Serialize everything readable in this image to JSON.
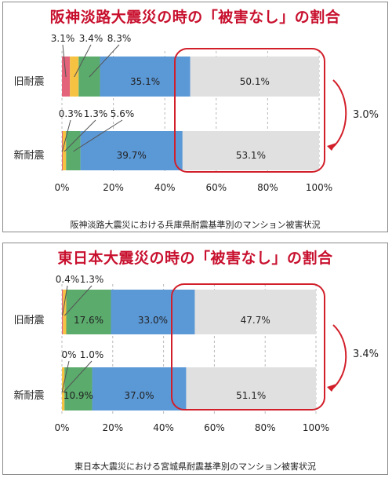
{
  "chart_data": [
    {
      "type": "bar",
      "title": "阪神淡路大震災の時の「被害なし」の割合",
      "caption": "阪神淡路大震災における兵庫県耐震基準別のマンション被害状況",
      "categories": [
        "旧耐震",
        "新耐震"
      ],
      "series_colors": [
        "#e2637a",
        "#f5c242",
        "#5aab6c",
        "#5b98d6",
        "#e0e0e0"
      ],
      "values": [
        [
          3.1,
          3.4,
          8.3,
          35.1,
          50.1
        ],
        [
          0.3,
          1.3,
          5.6,
          39.7,
          53.1
        ]
      ],
      "labels": [
        [
          "3.1%",
          "3.4%",
          "8.3%",
          "35.1%",
          "50.1%"
        ],
        [
          "0.3%",
          "1.3%",
          "5.6%",
          "39.7%",
          "53.1%"
        ]
      ],
      "x_ticks": [
        "0%",
        "20%",
        "40%",
        "60%",
        "80%",
        "100%"
      ],
      "xlim": [
        0,
        100
      ],
      "grid": "vertical-dashed",
      "diff_label": "3.0%"
    },
    {
      "type": "bar",
      "title": "東日本大震災の時の「被害なし」の割合",
      "caption": "東日本大震災における宮城県耐震基準別のマンション被害状況",
      "categories": [
        "旧耐震",
        "新耐震"
      ],
      "series_colors": [
        "#e2637a",
        "#f5c242",
        "#5aab6c",
        "#5b98d6",
        "#e0e0e0"
      ],
      "values": [
        [
          0.4,
          1.3,
          17.6,
          33.0,
          47.7
        ],
        [
          0.0,
          1.0,
          10.9,
          37.0,
          51.1
        ]
      ],
      "labels": [
        [
          "0.4%",
          "1.3%",
          "17.6%",
          "33.0%",
          "47.7%"
        ],
        [
          "0%",
          "1.0%",
          "10.9%",
          "37.0%",
          "51.1%"
        ]
      ],
      "x_ticks": [
        "0%",
        "20%",
        "40%",
        "60%",
        "80%",
        "100%"
      ],
      "xlim": [
        0,
        100
      ],
      "grid": "vertical-dashed",
      "diff_label": "3.4%"
    }
  ]
}
